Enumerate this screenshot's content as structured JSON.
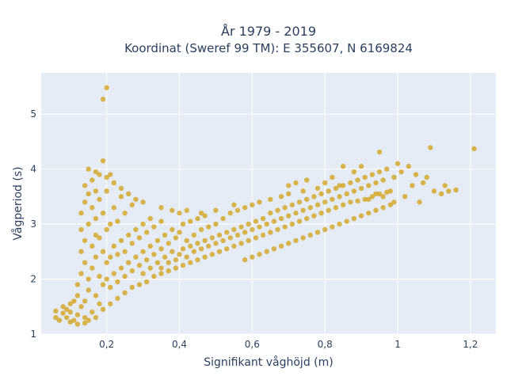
{
  "chart_data": {
    "type": "scatter",
    "title_line1": "År 1979 - 2019",
    "title_line2": "Koordinat (Sweref 99 TM): E 355607, N 6169824",
    "xlabel": "Signifikant våghöjd (m)",
    "ylabel": "Vågperiod (s)",
    "xlim": [
      0.02,
      1.27
    ],
    "ylim": [
      1.0,
      5.75
    ],
    "x_ticks": [
      0.2,
      0.4,
      0.6,
      0.8,
      1.0,
      1.2
    ],
    "x_tick_labels": [
      "0,2",
      "0,4",
      "0,6",
      "0,8",
      "1",
      "1,2"
    ],
    "y_ticks": [
      1,
      2,
      3,
      4,
      5
    ],
    "y_tick_labels": [
      "1",
      "2",
      "3",
      "4",
      "5"
    ],
    "marker_color": "#D4A520",
    "grid": true,
    "points": [
      [
        0.06,
        1.3
      ],
      [
        0.06,
        1.42
      ],
      [
        0.07,
        1.25
      ],
      [
        0.08,
        1.38
      ],
      [
        0.08,
        1.5
      ],
      [
        0.09,
        1.45
      ],
      [
        0.09,
        1.3
      ],
      [
        0.1,
        1.55
      ],
      [
        0.1,
        1.4
      ],
      [
        0.11,
        1.25
      ],
      [
        0.11,
        1.6
      ],
      [
        0.12,
        1.7
      ],
      [
        0.12,
        1.35
      ],
      [
        0.12,
        1.9
      ],
      [
        0.13,
        1.5
      ],
      [
        0.13,
        2.1
      ],
      [
        0.13,
        2.5
      ],
      [
        0.13,
        2.9
      ],
      [
        0.13,
        3.2
      ],
      [
        0.14,
        1.6
      ],
      [
        0.14,
        1.3
      ],
      [
        0.14,
        2.3
      ],
      [
        0.14,
        2.7
      ],
      [
        0.14,
        3.4
      ],
      [
        0.14,
        3.7
      ],
      [
        0.15,
        1.8
      ],
      [
        0.15,
        2.0
      ],
      [
        0.15,
        3.0
      ],
      [
        0.15,
        3.55
      ],
      [
        0.15,
        4.0
      ],
      [
        0.16,
        1.4
      ],
      [
        0.16,
        2.2
      ],
      [
        0.16,
        2.6
      ],
      [
        0.16,
        3.3
      ],
      [
        0.16,
        3.8
      ],
      [
        0.17,
        1.7
      ],
      [
        0.17,
        2.4
      ],
      [
        0.17,
        2.8
      ],
      [
        0.17,
        3.1
      ],
      [
        0.17,
        3.6
      ],
      [
        0.18,
        1.55
      ],
      [
        0.18,
        2.05
      ],
      [
        0.18,
        2.75
      ],
      [
        0.18,
        3.45
      ],
      [
        0.18,
        3.9
      ],
      [
        0.19,
        5.27
      ],
      [
        0.2,
        5.48
      ],
      [
        0.19,
        4.15
      ],
      [
        0.19,
        1.9
      ],
      [
        0.19,
        2.5
      ],
      [
        0.19,
        3.2
      ],
      [
        0.2,
        2.0
      ],
      [
        0.2,
        2.3
      ],
      [
        0.2,
        2.9
      ],
      [
        0.2,
        3.6
      ],
      [
        0.21,
        1.85
      ],
      [
        0.21,
        2.4
      ],
      [
        0.21,
        3.0
      ],
      [
        0.21,
        3.9
      ],
      [
        0.22,
        2.1
      ],
      [
        0.22,
        2.6
      ],
      [
        0.22,
        3.3
      ],
      [
        0.23,
        1.95
      ],
      [
        0.23,
        2.45
      ],
      [
        0.23,
        3.05
      ],
      [
        0.24,
        2.2
      ],
      [
        0.24,
        2.7
      ],
      [
        0.24,
        3.5
      ],
      [
        0.25,
        2.05
      ],
      [
        0.25,
        2.5
      ],
      [
        0.25,
        3.2
      ],
      [
        0.26,
        2.3
      ],
      [
        0.26,
        2.8
      ],
      [
        0.27,
        2.15
      ],
      [
        0.27,
        2.65
      ],
      [
        0.27,
        3.35
      ],
      [
        0.28,
        2.4
      ],
      [
        0.28,
        2.9
      ],
      [
        0.29,
        2.25
      ],
      [
        0.29,
        2.75
      ],
      [
        0.3,
        2.1
      ],
      [
        0.3,
        2.5
      ],
      [
        0.3,
        3.0
      ],
      [
        0.31,
        2.35
      ],
      [
        0.31,
        2.85
      ],
      [
        0.32,
        2.2
      ],
      [
        0.32,
        2.6
      ],
      [
        0.32,
        3.1
      ],
      [
        0.33,
        2.45
      ],
      [
        0.33,
        2.95
      ],
      [
        0.34,
        2.3
      ],
      [
        0.34,
        2.7
      ],
      [
        0.35,
        2.2
      ],
      [
        0.35,
        2.55
      ],
      [
        0.35,
        3.05
      ],
      [
        0.36,
        2.4
      ],
      [
        0.36,
        2.8
      ],
      [
        0.37,
        2.3
      ],
      [
        0.37,
        2.65
      ],
      [
        0.38,
        2.5
      ],
      [
        0.38,
        2.9
      ],
      [
        0.39,
        2.35
      ],
      [
        0.39,
        2.75
      ],
      [
        0.4,
        2.45
      ],
      [
        0.4,
        2.85
      ],
      [
        0.41,
        2.55
      ],
      [
        0.41,
        3.0
      ],
      [
        0.42,
        2.4
      ],
      [
        0.42,
        2.7
      ],
      [
        0.43,
        2.6
      ],
      [
        0.43,
        3.05
      ],
      [
        0.44,
        2.5
      ],
      [
        0.44,
        2.8
      ],
      [
        0.45,
        2.65
      ],
      [
        0.45,
        3.1
      ],
      [
        0.46,
        2.55
      ],
      [
        0.46,
        2.9
      ],
      [
        0.47,
        2.7
      ],
      [
        0.47,
        3.15
      ],
      [
        0.48,
        2.6
      ],
      [
        0.48,
        2.95
      ],
      [
        0.49,
        2.75
      ],
      [
        0.5,
        2.65
      ],
      [
        0.5,
        3.0
      ],
      [
        0.51,
        2.8
      ],
      [
        0.52,
        2.7
      ],
      [
        0.52,
        3.1
      ],
      [
        0.53,
        2.85
      ],
      [
        0.54,
        2.75
      ],
      [
        0.54,
        3.2
      ],
      [
        0.55,
        2.9
      ],
      [
        0.56,
        2.8
      ],
      [
        0.56,
        3.25
      ],
      [
        0.57,
        2.95
      ],
      [
        0.58,
        2.85
      ],
      [
        0.58,
        3.3
      ],
      [
        0.59,
        3.0
      ],
      [
        0.6,
        2.9
      ],
      [
        0.6,
        3.35
      ],
      [
        0.61,
        3.05
      ],
      [
        0.62,
        2.95
      ],
      [
        0.62,
        3.4
      ],
      [
        0.63,
        3.1
      ],
      [
        0.64,
        3.0
      ],
      [
        0.65,
        3.2
      ],
      [
        0.65,
        3.45
      ],
      [
        0.66,
        3.05
      ],
      [
        0.67,
        3.25
      ],
      [
        0.68,
        3.1
      ],
      [
        0.68,
        3.5
      ],
      [
        0.69,
        3.3
      ],
      [
        0.7,
        3.15
      ],
      [
        0.7,
        3.55
      ],
      [
        0.71,
        3.35
      ],
      [
        0.72,
        3.2
      ],
      [
        0.73,
        3.4
      ],
      [
        0.74,
        3.25
      ],
      [
        0.74,
        3.6
      ],
      [
        0.75,
        3.45
      ],
      [
        0.76,
        3.3
      ],
      [
        0.77,
        3.5
      ],
      [
        0.78,
        3.35
      ],
      [
        0.78,
        3.65
      ],
      [
        0.79,
        3.55
      ],
      [
        0.8,
        3.4
      ],
      [
        0.81,
        3.6
      ],
      [
        0.82,
        3.45
      ],
      [
        0.83,
        3.65
      ],
      [
        0.84,
        3.5
      ],
      [
        0.85,
        3.7
      ],
      [
        0.86,
        3.55
      ],
      [
        0.87,
        3.75
      ],
      [
        0.88,
        3.6
      ],
      [
        0.89,
        3.8
      ],
      [
        0.9,
        3.65
      ],
      [
        0.91,
        3.85
      ],
      [
        0.92,
        3.7
      ],
      [
        0.93,
        3.9
      ],
      [
        0.94,
        3.75
      ],
      [
        0.95,
        4.31
      ],
      [
        0.95,
        3.95
      ],
      [
        0.96,
        3.8
      ],
      [
        0.97,
        4.0
      ],
      [
        0.98,
        3.6
      ],
      [
        0.99,
        3.85
      ],
      [
        1.0,
        4.1
      ],
      [
        1.01,
        3.95
      ],
      [
        1.02,
        3.5
      ],
      [
        1.03,
        4.05
      ],
      [
        1.04,
        3.7
      ],
      [
        1.05,
        3.9
      ],
      [
        1.06,
        3.4
      ],
      [
        1.07,
        3.75
      ],
      [
        1.08,
        3.85
      ],
      [
        1.09,
        4.39
      ],
      [
        1.1,
        3.6
      ],
      [
        1.12,
        3.55
      ],
      [
        1.13,
        3.7
      ],
      [
        1.14,
        3.6
      ],
      [
        1.16,
        3.62
      ],
      [
        1.21,
        4.37
      ],
      [
        0.85,
        4.05
      ],
      [
        0.88,
        3.95
      ],
      [
        0.9,
        4.05
      ],
      [
        0.92,
        3.45
      ],
      [
        0.94,
        3.55
      ],
      [
        0.96,
        3.5
      ],
      [
        0.99,
        3.4
      ],
      [
        0.8,
        3.75
      ],
      [
        0.82,
        3.85
      ],
      [
        0.84,
        3.7
      ],
      [
        0.75,
        3.8
      ],
      [
        0.72,
        3.75
      ],
      [
        0.7,
        3.7
      ],
      [
        0.55,
        3.35
      ],
      [
        0.5,
        3.25
      ],
      [
        0.46,
        3.2
      ],
      [
        0.42,
        3.25
      ],
      [
        0.4,
        3.2
      ],
      [
        0.38,
        3.25
      ],
      [
        0.35,
        3.3
      ],
      [
        0.3,
        3.4
      ],
      [
        0.28,
        3.45
      ],
      [
        0.26,
        3.55
      ],
      [
        0.24,
        3.65
      ],
      [
        0.22,
        3.75
      ],
      [
        0.2,
        3.85
      ],
      [
        0.17,
        3.95
      ],
      [
        0.1,
        1.22
      ],
      [
        0.12,
        1.18
      ],
      [
        0.14,
        1.2
      ],
      [
        0.15,
        1.25
      ],
      [
        0.17,
        1.3
      ],
      [
        0.19,
        1.45
      ],
      [
        0.21,
        1.55
      ],
      [
        0.23,
        1.65
      ],
      [
        0.25,
        1.75
      ],
      [
        0.27,
        1.85
      ],
      [
        0.29,
        1.9
      ],
      [
        0.31,
        1.95
      ],
      [
        0.33,
        2.05
      ],
      [
        0.35,
        2.1
      ],
      [
        0.37,
        2.15
      ],
      [
        0.39,
        2.2
      ],
      [
        0.41,
        2.25
      ],
      [
        0.43,
        2.3
      ],
      [
        0.45,
        2.35
      ],
      [
        0.47,
        2.4
      ],
      [
        0.49,
        2.45
      ],
      [
        0.51,
        2.5
      ],
      [
        0.53,
        2.55
      ],
      [
        0.55,
        2.6
      ],
      [
        0.57,
        2.65
      ],
      [
        0.59,
        2.7
      ],
      [
        0.61,
        2.75
      ],
      [
        0.63,
        2.8
      ],
      [
        0.65,
        2.85
      ],
      [
        0.67,
        2.9
      ],
      [
        0.69,
        2.95
      ],
      [
        0.71,
        3.0
      ],
      [
        0.73,
        3.05
      ],
      [
        0.75,
        3.1
      ],
      [
        0.77,
        3.15
      ],
      [
        0.79,
        3.2
      ],
      [
        0.81,
        3.25
      ],
      [
        0.83,
        3.3
      ],
      [
        0.85,
        3.35
      ],
      [
        0.87,
        3.4
      ],
      [
        0.89,
        3.42
      ],
      [
        0.91,
        3.45
      ],
      [
        0.93,
        3.5
      ],
      [
        0.95,
        3.55
      ],
      [
        0.97,
        3.58
      ],
      [
        0.58,
        2.35
      ],
      [
        0.6,
        2.4
      ],
      [
        0.62,
        2.45
      ],
      [
        0.64,
        2.5
      ],
      [
        0.66,
        2.55
      ],
      [
        0.68,
        2.6
      ],
      [
        0.7,
        2.65
      ],
      [
        0.72,
        2.7
      ],
      [
        0.74,
        2.75
      ],
      [
        0.76,
        2.8
      ],
      [
        0.78,
        2.85
      ],
      [
        0.8,
        2.9
      ],
      [
        0.82,
        2.95
      ],
      [
        0.84,
        3.0
      ],
      [
        0.86,
        3.05
      ],
      [
        0.88,
        3.1
      ],
      [
        0.9,
        3.15
      ],
      [
        0.92,
        3.2
      ],
      [
        0.94,
        3.25
      ],
      [
        0.96,
        3.3
      ],
      [
        0.98,
        3.35
      ]
    ]
  }
}
